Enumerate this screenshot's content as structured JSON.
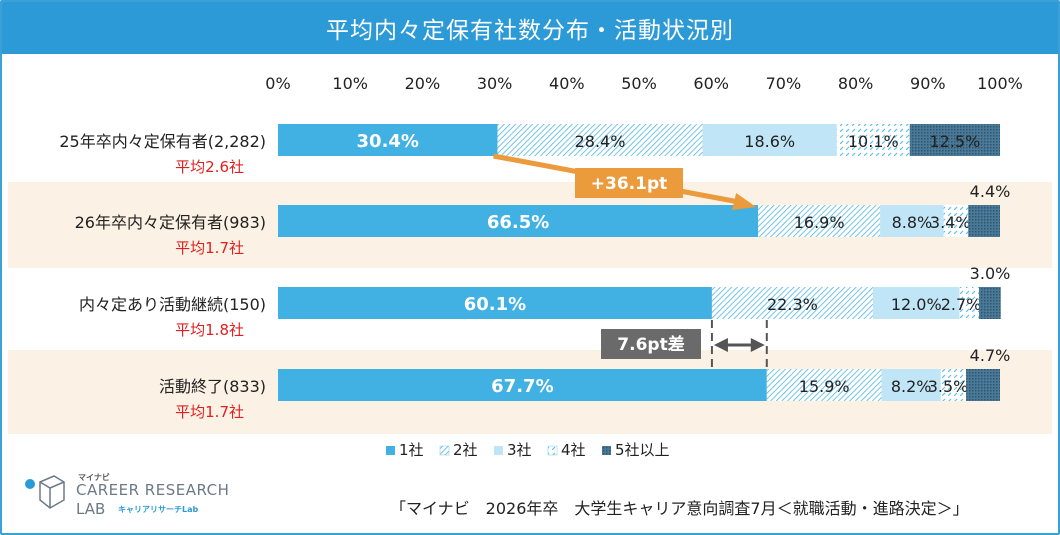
{
  "header": {
    "title": "平均内々定保有社数分布・活動状況別"
  },
  "chart_data": {
    "type": "bar",
    "orientation": "horizontal-stacked-100",
    "xlim": [
      0,
      100
    ],
    "x_ticks": [
      "0%",
      "10%",
      "20%",
      "30%",
      "40%",
      "50%",
      "60%",
      "70%",
      "80%",
      "90%",
      "100%"
    ],
    "categories": [
      {
        "label": "25年卒内々定保有者(2,282)",
        "avg": "平均2.6社"
      },
      {
        "label": "26年卒内々定保有者(983)",
        "avg": "平均1.7社"
      },
      {
        "label": "内々定あり活動継続(150)",
        "avg": "平均1.8社"
      },
      {
        "label": "活動終了(833)",
        "avg": "平均1.7社"
      }
    ],
    "series": [
      {
        "name": "1社",
        "color": "#41b1e3",
        "values": [
          30.4,
          66.5,
          60.1,
          67.7
        ],
        "labels": [
          "30.4%",
          "66.5%",
          "60.1%",
          "67.7%"
        ]
      },
      {
        "name": "2社",
        "color": "#7ccbe9",
        "values": [
          28.4,
          16.9,
          22.3,
          15.9
        ],
        "labels": [
          "28.4%",
          "16.9%",
          "22.3%",
          "15.9%"
        ]
      },
      {
        "name": "3社",
        "color": "#bfe5f6",
        "values": [
          18.6,
          8.8,
          12.0,
          8.2
        ],
        "labels": [
          "18.6%",
          "8.8%",
          "12.0%",
          "8.2%"
        ]
      },
      {
        "name": "4社",
        "color": "#8fd0ec",
        "values": [
          10.1,
          3.4,
          2.7,
          3.5
        ],
        "labels": [
          "10.1%",
          "3.4%",
          "2.7%",
          "3.5%"
        ]
      },
      {
        "name": "5社以上",
        "color": "#3d6a86",
        "values": [
          12.5,
          4.4,
          3.0,
          4.7
        ],
        "labels": [
          "12.5%",
          "4.4%",
          "3.0%",
          "4.7%"
        ]
      }
    ],
    "annotations": [
      {
        "type": "arrow",
        "text": "+36.1pt"
      },
      {
        "type": "difference",
        "text": "7.6pt差"
      }
    ]
  },
  "footer": {
    "logo_small": "マイナビ",
    "logo_main": "CAREER RESEARCH",
    "logo_sub": "LAB",
    "logo_sub_jp": "キャリアリサーチLab",
    "source": "「マイナビ　2026年卒　大学生キャリア意向調査7月＜就職活動・進路決定＞」"
  }
}
